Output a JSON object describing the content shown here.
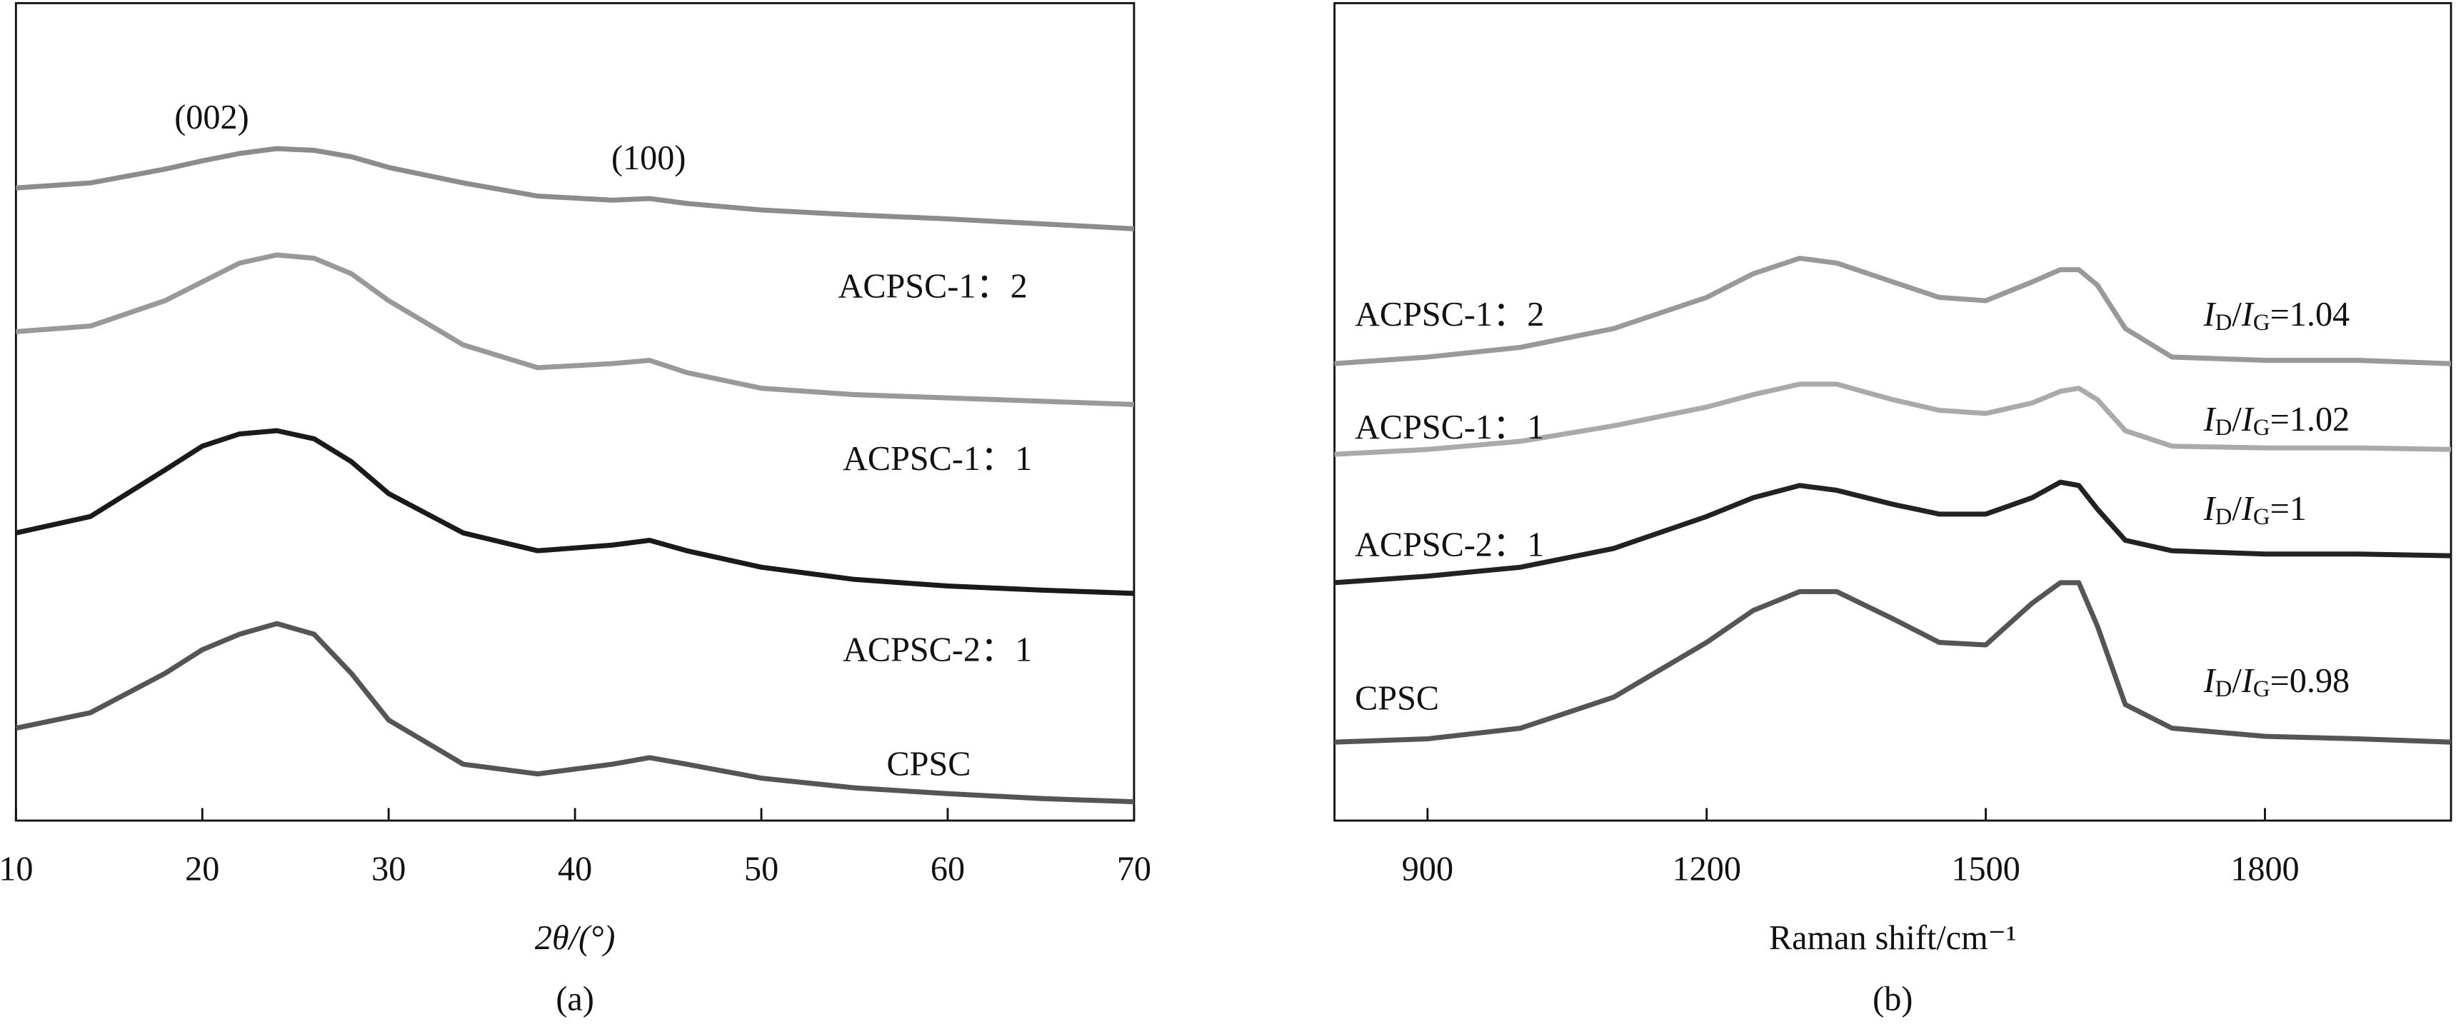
{
  "chart_data": [
    {
      "type": "line",
      "caption": "(a)",
      "x_label": "2θ/(°)",
      "xlim": [
        10,
        70
      ],
      "xticks": [
        10,
        20,
        30,
        40,
        50,
        60,
        70
      ],
      "ylim": [
        0,
        100
      ],
      "annotations": [
        "(002)",
        "(100)"
      ],
      "x": [
        10,
        14,
        18,
        20,
        22,
        24,
        26,
        28,
        30,
        34,
        38,
        42,
        44,
        46,
        50,
        55,
        60,
        65,
        70
      ],
      "series": [
        {
          "name": "ACPSC-1：2",
          "color": "#8c8c8c",
          "values": [
            77.4,
            78.0,
            79.7,
            80.7,
            81.6,
            82.2,
            82.0,
            81.2,
            79.9,
            78.0,
            76.4,
            75.9,
            76.1,
            75.5,
            74.7,
            74.1,
            73.6,
            73.0,
            72.4
          ]
        },
        {
          "name": "ACPSC-1：1",
          "color": "#999999",
          "values": [
            59.8,
            60.5,
            63.6,
            65.9,
            68.2,
            69.2,
            68.8,
            66.9,
            63.6,
            58.2,
            55.4,
            55.9,
            56.3,
            54.8,
            52.9,
            52.1,
            51.7,
            51.3,
            50.9
          ]
        },
        {
          "name": "ACPSC-2：1",
          "color": "#1a1a1a",
          "values": [
            35.2,
            37.2,
            42.9,
            45.8,
            47.3,
            47.7,
            46.7,
            43.9,
            40.0,
            35.2,
            33.0,
            33.7,
            34.3,
            33.0,
            31.0,
            29.5,
            28.7,
            28.2,
            27.8
          ]
        },
        {
          "name": "CPSC",
          "color": "#555555",
          "values": [
            11.3,
            13.2,
            18.0,
            20.9,
            22.8,
            24.1,
            22.8,
            18.0,
            12.3,
            6.9,
            5.7,
            6.9,
            7.7,
            6.9,
            5.2,
            4.0,
            3.3,
            2.7,
            2.3
          ]
        }
      ]
    },
    {
      "type": "line",
      "caption": "(b)",
      "x_label": "Raman shift/cm⁻¹",
      "xlim": [
        800,
        2000
      ],
      "xticks": [
        900,
        1200,
        1500,
        1800
      ],
      "ylim": [
        0,
        100
      ],
      "ratio_parts": [
        {
          "text": "I",
          "italic": true
        },
        {
          "text": "D",
          "sub": true
        },
        {
          "text": "/"
        },
        {
          "text": "I",
          "italic": true
        },
        {
          "text": "G",
          "sub": true
        },
        {
          "text": "="
        }
      ],
      "x": [
        800,
        900,
        1000,
        1100,
        1200,
        1250,
        1300,
        1340,
        1400,
        1450,
        1500,
        1550,
        1580,
        1600,
        1620,
        1650,
        1700,
        1800,
        1900,
        2000
      ],
      "series": [
        {
          "name": "ACPSC-1：2",
          "color": "#999999",
          "ratio": 1.04,
          "values": [
            55.9,
            56.7,
            57.9,
            60.2,
            64.0,
            66.9,
            68.8,
            68.2,
            65.9,
            64.0,
            63.6,
            65.9,
            67.4,
            67.4,
            65.5,
            60.2,
            56.7,
            56.3,
            56.3,
            55.9
          ]
        },
        {
          "name": "ACPSC-1：1",
          "color": "#aaaaaa",
          "ratio": 1.02,
          "values": [
            44.8,
            45.4,
            46.4,
            48.3,
            50.6,
            52.1,
            53.4,
            53.4,
            51.5,
            50.2,
            49.8,
            51.1,
            52.5,
            52.9,
            51.5,
            47.7,
            45.8,
            45.6,
            45.6,
            45.4
          ]
        },
        {
          "name": "ACPSC-2：1",
          "color": "#222222",
          "ratio": 1,
          "values": [
            29.1,
            29.9,
            31.0,
            33.3,
            37.2,
            39.5,
            41.0,
            40.4,
            38.7,
            37.5,
            37.5,
            39.5,
            41.4,
            41.0,
            38.1,
            34.3,
            33.0,
            32.6,
            32.6,
            32.4
          ]
        },
        {
          "name": "CPSC",
          "color": "#555555",
          "ratio": 0.98,
          "values": [
            9.6,
            10.0,
            11.3,
            15.1,
            21.8,
            25.7,
            28.0,
            28.0,
            24.7,
            21.8,
            21.5,
            26.6,
            29.1,
            29.1,
            23.8,
            14.2,
            11.3,
            10.3,
            10.0,
            9.6
          ]
        }
      ]
    }
  ]
}
